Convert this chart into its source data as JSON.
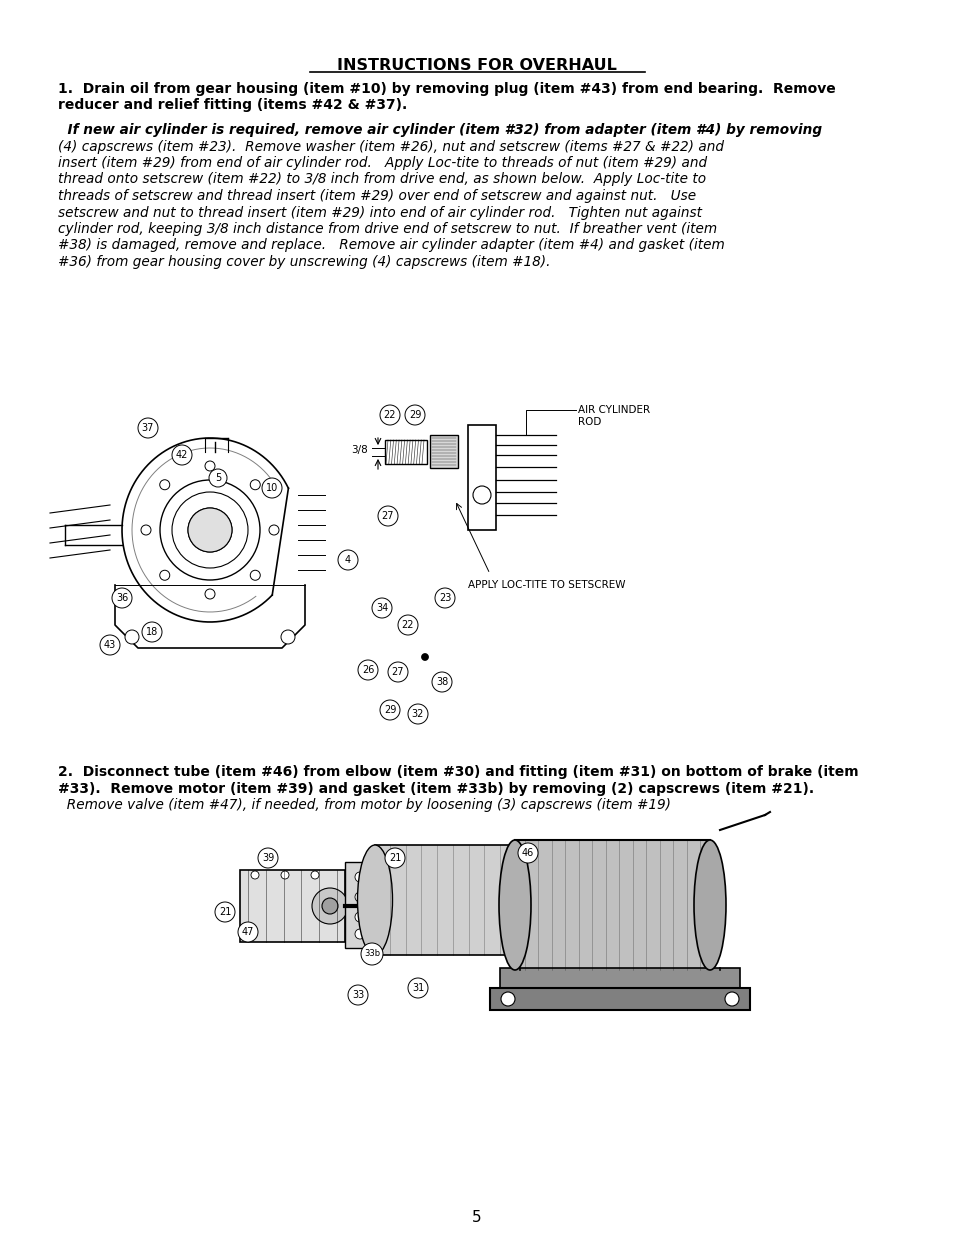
{
  "background_color": "#ffffff",
  "page_number": "5",
  "title": "INSTRUCTIONS FOR OVERHAUL",
  "paragraph1_bold_line1": "1.  Drain oil from gear housing (item #10) by removing plug (item #43) from end bearing.  Remove",
  "paragraph1_bold_line2": "reducer and relief fitting (items #42 & #37).",
  "paragraph1_italic_line1": "  If new air cylinder is required, remove air cylinder (item #32) from adapter (item #4) by removing",
  "paragraph1_italic_line2": "(4) capscrews (item #23).  Remove washer (item #26), nut and setscrew (items #27 & #22) and",
  "paragraph1_italic_line3": "insert (item #29) from end of air cylinder rod.   Apply Loc-tite to threads of nut (item #29) and",
  "paragraph1_italic_line4": "thread onto setscrew (item #22) to 3/8 inch from drive end, as shown below.  Apply Loc-tite to",
  "paragraph1_italic_line5": "threads of setscrew and thread insert (item #29) over end of setscrew and against nut.   Use",
  "paragraph1_italic_line6": "setscrew and nut to thread insert (item #29) into end of air cylinder rod.   Tighten nut against",
  "paragraph1_italic_line7": "cylinder rod, keeping 3/8 inch distance from drive end of setscrew to nut.  If breather vent (item",
  "paragraph1_italic_line8": "#38) is damaged, remove and replace.   Remove air cylinder adapter (item #4) and gasket (item",
  "paragraph1_italic_line9": "#36) from gear housing cover by unscrewing (4) capscrews (item #18).",
  "paragraph2_bold_line1": "2.  Disconnect tube (item #46) from elbow (item #30) and fitting (item #31) on bottom of brake (item",
  "paragraph2_bold_line2": "#33).  Remove motor (item #39) and gasket (item #33b) by removing (2) capscrews (item #21).",
  "paragraph2_italic_line1": "  Remove valve (item #47), if needed, from motor by loosening (3) capscrews (item #19)"
}
